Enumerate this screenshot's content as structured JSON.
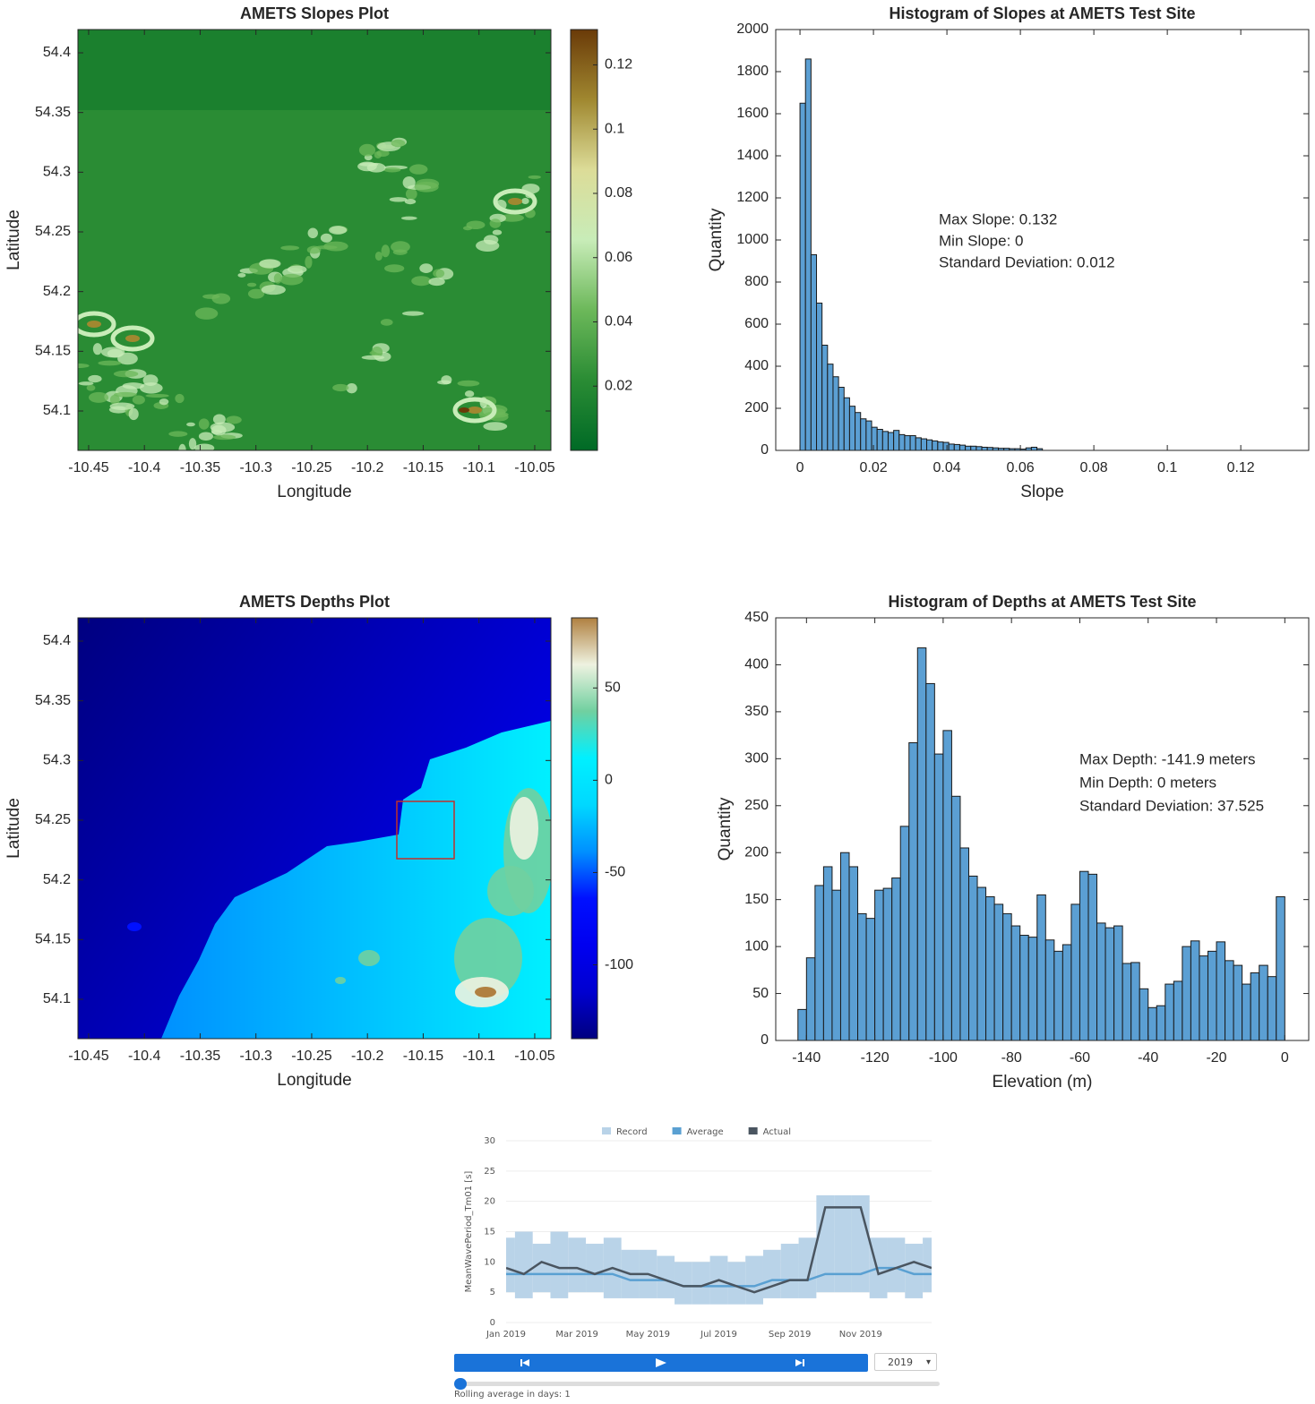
{
  "chart_data": [
    {
      "type": "heatmap",
      "title": "AMETS Slopes Plot",
      "xlabel": "Longitude",
      "ylabel": "Latitude",
      "xlim": [
        -10.4596,
        -10.0355
      ],
      "xticks": [
        -10.45,
        -10.4,
        -10.35,
        -10.3,
        -10.25,
        -10.2,
        -10.15,
        -10.1,
        -10.05
      ],
      "ylim": [
        54.067,
        54.4195
      ],
      "yticks": [
        54.1,
        54.15,
        54.2,
        54.25,
        54.3,
        54.35,
        54.4
      ],
      "clim": [
        0,
        0.131
      ],
      "cticks": [
        0.02,
        0.04,
        0.06,
        0.08,
        0.1,
        0.12
      ],
      "colormap": [
        "#006a26",
        "#2a8c34",
        "#6cb85a",
        "#c8ecb8",
        "#dcdc98",
        "#a08830",
        "#6a3a08"
      ]
    },
    {
      "type": "histogram",
      "title": "Histogram of Slopes at AMETS Test Site",
      "xlabel": "Slope",
      "ylabel": "Quantity",
      "color": "#5b9fd3",
      "bins": [
        0,
        0.0015,
        0.003,
        0.0045,
        0.006,
        0.0075,
        0.009,
        0.0105,
        0.012,
        0.0135,
        0.015,
        0.0165,
        0.018,
        0.0195,
        0.021,
        0.0225,
        0.024,
        0.0255,
        0.027,
        0.0285,
        0.03,
        0.0315,
        0.033,
        0.0345,
        0.036,
        0.0375,
        0.039,
        0.0405,
        0.042,
        0.0435,
        0.045,
        0.0465,
        0.048,
        0.0495,
        0.051,
        0.0525,
        0.054,
        0.0555,
        0.057,
        0.0585,
        0.06,
        0.0615,
        0.063,
        0.0645,
        0.066
      ],
      "values": [
        1650,
        1860,
        930,
        700,
        500,
        410,
        350,
        300,
        250,
        210,
        180,
        150,
        140,
        110,
        100,
        90,
        85,
        95,
        75,
        70,
        70,
        60,
        55,
        50,
        45,
        40,
        38,
        30,
        28,
        25,
        20,
        20,
        18,
        15,
        14,
        12,
        10,
        10,
        8,
        8,
        6,
        12,
        15,
        8
      ],
      "xlim": [
        -0.0066,
        0.1385
      ],
      "xticks": [
        0,
        0.02,
        0.04,
        0.06,
        0.08,
        0.1,
        0.12
      ],
      "ylim": [
        0,
        2000
      ],
      "yticks": [
        0,
        200,
        400,
        600,
        800,
        1000,
        1200,
        1400,
        1600,
        1800,
        2000
      ],
      "annotations": [
        "Max Slope: 0.132",
        "Min Slope: 0",
        "Standard Deviation: 0.012"
      ]
    },
    {
      "type": "heatmap",
      "title": "AMETS Depths Plot",
      "xlabel": "Longitude",
      "ylabel": "Latitude",
      "xlim": [
        -10.4596,
        -10.0355
      ],
      "xticks": [
        -10.45,
        -10.4,
        -10.35,
        -10.3,
        -10.25,
        -10.2,
        -10.15,
        -10.1,
        -10.05
      ],
      "ylim": [
        54.067,
        54.4195
      ],
      "yticks": [
        54.1,
        54.15,
        54.2,
        54.25,
        54.3,
        54.35,
        54.4
      ],
      "clim": [
        -140,
        88
      ],
      "cticks": [
        -100,
        -50,
        0,
        50
      ],
      "colormap": [
        "#000080",
        "#0000d0",
        "#0000f0",
        "#0010ff",
        "#0090ff",
        "#00d8ff",
        "#00f0ff",
        "#70d0a0",
        "#eef2e0",
        "#b08040"
      ]
    },
    {
      "type": "histogram",
      "title": "Histogram of Depths at AMETS Test Site",
      "xlabel": "Elevation (m)",
      "ylabel": "Quantity",
      "color": "#5b9fd3",
      "bins": [
        -142.5,
        -140,
        -137.5,
        -135,
        -132.5,
        -130,
        -127.5,
        -125,
        -122.5,
        -120,
        -117.5,
        -115,
        -112.5,
        -110,
        -107.5,
        -105,
        -102.5,
        -100,
        -97.5,
        -95,
        -92.5,
        -90,
        -87.5,
        -85,
        -82.5,
        -80,
        -77.5,
        -75,
        -72.5,
        -70,
        -67.5,
        -65,
        -62.5,
        -60,
        -57.5,
        -55,
        -52.5,
        -50,
        -47.5,
        -45,
        -42.5,
        -40,
        -37.5,
        -35,
        -32.5,
        -30,
        -27.5,
        -25,
        -22.5,
        -20,
        -17.5,
        -15,
        -12.5,
        -10,
        -7.5,
        -5,
        -2.5,
        0
      ],
      "values": [
        33,
        88,
        165,
        185,
        160,
        200,
        185,
        135,
        130,
        160,
        162,
        173,
        228,
        317,
        418,
        380,
        305,
        330,
        260,
        205,
        175,
        163,
        153,
        145,
        135,
        122,
        112,
        110,
        155,
        107,
        95,
        102,
        145,
        180,
        177,
        125,
        120,
        122,
        82,
        83,
        55,
        35,
        37,
        60,
        63,
        100,
        106,
        90,
        95,
        105,
        85,
        80,
        60,
        72,
        80,
        68,
        153
      ],
      "xlim": [
        -149,
        7
      ],
      "xticks": [
        -140,
        -120,
        -100,
        -80,
        -60,
        -40,
        -20,
        0
      ],
      "ylim": [
        0,
        450
      ],
      "yticks": [
        0,
        50,
        100,
        150,
        200,
        250,
        300,
        350,
        400,
        450
      ],
      "annotations": [
        "Max Depth: -141.9 meters",
        "Min Depth: 0 meters",
        "Standard Deviation: 37.525"
      ]
    },
    {
      "type": "line",
      "ylabel": "MeanWavePeriod_Tm01 [s]",
      "x": [
        0,
        0.5,
        1,
        1.5,
        2,
        2.5,
        3,
        3.5,
        4,
        4.5,
        5,
        5.5,
        6,
        6.5,
        7,
        7.5,
        8,
        8.5,
        9,
        9.5,
        10,
        10.5,
        11,
        11.5,
        12
      ],
      "xlim": [
        0,
        12
      ],
      "xticks": [
        {
          "value": 0,
          "label": "Jan 2019"
        },
        {
          "value": 2,
          "label": "Mar 2019"
        },
        {
          "value": 4,
          "label": "May 2019"
        },
        {
          "value": 6,
          "label": "Jul 2019"
        },
        {
          "value": 8,
          "label": "Sep 2019"
        },
        {
          "value": 10,
          "label": "Nov 2019"
        }
      ],
      "ylim": [
        0,
        30
      ],
      "yticks": [
        0,
        5,
        10,
        15,
        20,
        25,
        30
      ],
      "grid": true,
      "series": [
        {
          "name": "Record",
          "color": "#b9d3e8",
          "values": [
            14,
            15,
            13,
            15,
            14,
            13,
            14,
            12,
            12,
            11,
            10,
            10,
            11,
            10,
            11,
            12,
            13,
            14,
            21,
            21,
            21,
            14,
            14,
            13,
            14
          ],
          "lower": [
            5,
            4,
            5,
            4,
            5,
            5,
            4,
            4,
            4,
            4,
            3,
            3,
            3,
            3,
            3,
            4,
            4,
            4,
            5,
            5,
            5,
            4,
            5,
            4,
            5
          ]
        },
        {
          "name": "Average",
          "color": "#5aa0d2",
          "values": [
            8,
            8,
            8,
            8,
            8,
            8,
            8,
            7,
            7,
            7,
            6,
            6,
            6,
            6,
            6,
            7,
            7,
            7,
            8,
            8,
            8,
            9,
            9,
            8,
            8
          ]
        },
        {
          "name": "Actual",
          "color": "#4a5560",
          "values": [
            9,
            8,
            10,
            9,
            9,
            8,
            9,
            8,
            8,
            7,
            6,
            6,
            7,
            6,
            5,
            6,
            7,
            7,
            19,
            19,
            19,
            8,
            9,
            10,
            9
          ]
        }
      ]
    }
  ],
  "controls": {
    "year": "2019",
    "rolling_label": "Rolling average in days: 1"
  }
}
